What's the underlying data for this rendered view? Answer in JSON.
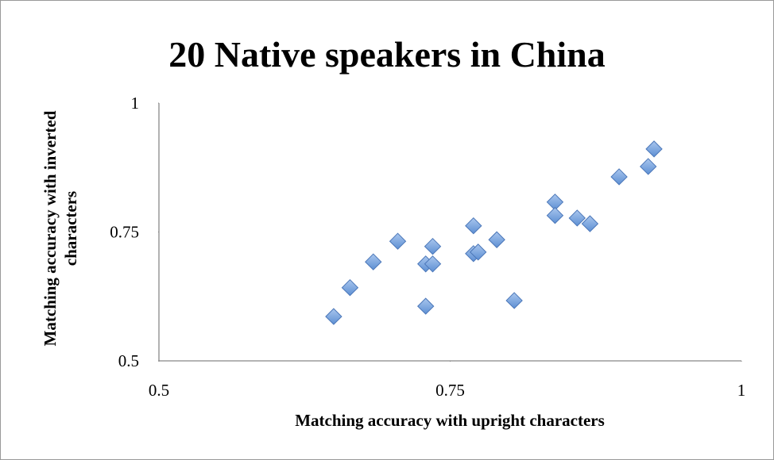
{
  "chart_data": {
    "type": "scatter",
    "title": "20 Native speakers in China",
    "x_label": "Matching accuracy with upright characters",
    "y_label": "Matching accuracy with inverted characters",
    "color": "#6f9fdc",
    "x": [
      0.65,
      0.664,
      0.684,
      0.705,
      0.729,
      0.729,
      0.735,
      0.735,
      0.77,
      0.77,
      0.774,
      0.79,
      0.805,
      0.84,
      0.84,
      0.859,
      0.87,
      0.895,
      0.92,
      0.925
    ],
    "values": [
      0.586,
      0.642,
      0.692,
      0.732,
      0.606,
      0.688,
      0.688,
      0.722,
      0.762,
      0.708,
      0.711,
      0.735,
      0.617,
      0.808,
      0.782,
      0.777,
      0.766,
      0.857,
      0.877,
      0.911
    ],
    "xlim": [
      0.5,
      1
    ],
    "xticks": [
      0.5,
      0.75,
      1
    ],
    "ylim": [
      0.5,
      1
    ],
    "yticks": [
      0.5,
      0.75,
      1
    ],
    "grid": false
  }
}
